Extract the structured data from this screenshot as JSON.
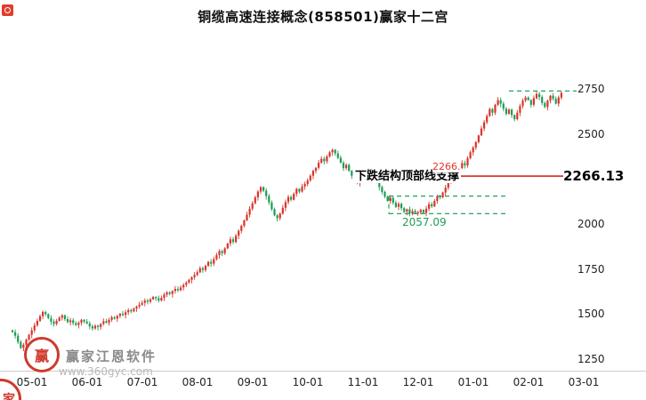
{
  "title": "铜缆高速连接概念(858501)赢家十二宫",
  "watermark": {
    "brand": "赢家江恩软件",
    "url": "www.360gyc.com",
    "logo_text": "赢",
    "corner_text": "家"
  },
  "chart_data": {
    "type": "candlestick",
    "title": "铜缆高速连接概念(858501)赢家十二宫",
    "xlabel": "",
    "ylabel": "",
    "ylim": [
      1250,
      2750
    ],
    "grid": false,
    "legend": false,
    "y_ticks": [
      "2750",
      "2500",
      "2000",
      "1750",
      "1500",
      "1250"
    ],
    "y_tick_values": [
      2750,
      2500,
      2000,
      1750,
      1500,
      1250
    ],
    "x_ticks": [
      "05-01",
      "06-01",
      "07-01",
      "08-01",
      "09-01",
      "10-01",
      "11-01",
      "12-01",
      "01-01",
      "02-01",
      "03-01"
    ],
    "colors": {
      "up": "#d9342b",
      "down": "#1f9d57",
      "resistance_line": "#e3322e",
      "struct_line": "#21a45d"
    },
    "closes": [
      1400,
      1380,
      1345,
      1312,
      1330,
      1358,
      1385,
      1410,
      1438,
      1462,
      1488,
      1512,
      1500,
      1478,
      1458,
      1445,
      1462,
      1480,
      1493,
      1472,
      1455,
      1465,
      1450,
      1440,
      1452,
      1468,
      1458,
      1448,
      1432,
      1420,
      1435,
      1428,
      1445,
      1460,
      1452,
      1468,
      1482,
      1475,
      1490,
      1502,
      1495,
      1510,
      1522,
      1515,
      1530,
      1542,
      1552,
      1562,
      1575,
      1568,
      1582,
      1595,
      1588,
      1575,
      1590,
      1608,
      1620,
      1612,
      1628,
      1640,
      1632,
      1648,
      1662,
      1675,
      1690,
      1705,
      1718,
      1732,
      1755,
      1745,
      1768,
      1790,
      1780,
      1805,
      1828,
      1850,
      1838,
      1865,
      1892,
      1915,
      1900,
      1935,
      1962,
      1990,
      2020,
      2052,
      2085,
      2115,
      2148,
      2180,
      2205,
      2185,
      2155,
      2120,
      2082,
      2048,
      2032,
      2058,
      2090,
      2122,
      2150,
      2135,
      2168,
      2195,
      2180,
      2208,
      2222,
      2242,
      2268,
      2295,
      2312,
      2340,
      2362,
      2348,
      2375,
      2398,
      2412,
      2392,
      2368,
      2340,
      2310,
      2328,
      2295,
      2268,
      2242,
      2228,
      2248,
      2268,
      2288,
      2302,
      2285,
      2260,
      2232,
      2205,
      2178,
      2152,
      2128,
      2145,
      2118,
      2095,
      2112,
      2088,
      2068,
      2082,
      2058,
      2072,
      2062,
      2065,
      2078,
      2062,
      2085,
      2110,
      2098,
      2128,
      2155,
      2148,
      2175,
      2202,
      2230,
      2258,
      2248,
      2282,
      2310,
      2338,
      2325,
      2365,
      2398,
      2425,
      2455,
      2492,
      2530,
      2565,
      2600,
      2638,
      2618,
      2662,
      2688,
      2668,
      2640,
      2612,
      2635,
      2605,
      2582,
      2618,
      2655,
      2685,
      2702,
      2688,
      2662,
      2698,
      2722,
      2705,
      2672,
      2650,
      2685,
      2712,
      2695,
      2668,
      2702,
      2728
    ],
    "annotations": {
      "note": "下跌结构顶部线支撑",
      "price_small": "2266.",
      "resistance_label": "2266.13",
      "resistance_price": 2266.13,
      "support_label": "2057.09",
      "support_price": 2057.09,
      "struct_top_price": 2155,
      "upper_dash_price": 2738
    }
  }
}
